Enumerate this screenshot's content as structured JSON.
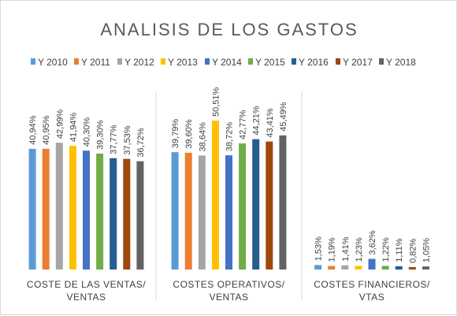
{
  "chart_data": {
    "type": "bar",
    "title": "ANALISIS DE LOS GASTOS",
    "categories": [
      [
        "COSTE DE LAS VENTAS/",
        "VENTAS"
      ],
      [
        "COSTES OPERATIVOS/",
        "VENTAS"
      ],
      [
        "COSTES FINANCIEROS/",
        "VTAS"
      ]
    ],
    "ylim": [
      0,
      60
    ],
    "grid": false,
    "legend_position": "top",
    "series": [
      {
        "name": "Y 2010",
        "color": "#5b9bd5",
        "values": [
          40.94,
          39.79,
          1.53
        ],
        "labels": [
          "40,94%",
          "39,79%",
          "1,53%"
        ]
      },
      {
        "name": "Y 2011",
        "color": "#ed7d31",
        "values": [
          40.95,
          39.6,
          1.19
        ],
        "labels": [
          "40,95%",
          "39,60%",
          "1,19%"
        ]
      },
      {
        "name": "Y 2012",
        "color": "#a5a5a5",
        "values": [
          42.99,
          38.64,
          1.41
        ],
        "labels": [
          "42,99%",
          "38,64%",
          "1,41%"
        ]
      },
      {
        "name": "Y 2013",
        "color": "#ffc000",
        "values": [
          41.94,
          50.51,
          1.23
        ],
        "labels": [
          "41,94%",
          "50,51%",
          "1,23%"
        ]
      },
      {
        "name": "Y 2014",
        "color": "#4472c4",
        "values": [
          40.3,
          38.72,
          3.62
        ],
        "labels": [
          "40,30%",
          "38,72%",
          "3,62%"
        ]
      },
      {
        "name": "Y 2015",
        "color": "#70ad47",
        "values": [
          39.3,
          42.77,
          1.22
        ],
        "labels": [
          "39,30%",
          "42,77%",
          "1,22%"
        ]
      },
      {
        "name": "Y 2016",
        "color": "#255e91",
        "values": [
          37.77,
          44.21,
          1.11
        ],
        "labels": [
          "37,77%",
          "44,21%",
          "1,11%"
        ]
      },
      {
        "name": "Y 2017",
        "color": "#9e480e",
        "values": [
          37.53,
          43.41,
          0.82
        ],
        "labels": [
          "37,53%",
          "43,41%",
          "0,82%"
        ]
      },
      {
        "name": "Y 2018",
        "color": "#636363",
        "values": [
          36.72,
          45.49,
          1.05
        ],
        "labels": [
          "36,72%",
          "45,49%",
          "1,05%"
        ]
      }
    ]
  }
}
